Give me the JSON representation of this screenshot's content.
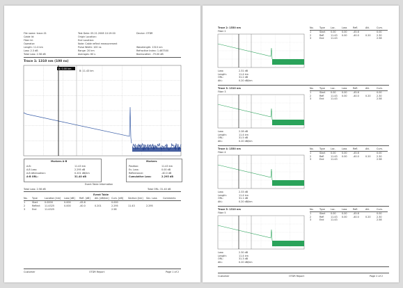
{
  "page1": {
    "header_left": [
      {
        "label": "File name:",
        "value": "trace-01"
      },
      {
        "label": "Cable Id:",
        "value": ""
      },
      {
        "label": "Fiber Id:",
        "value": ""
      },
      {
        "label": "Operator:",
        "value": ""
      },
      {
        "label": "Length:",
        "value": "11.4 km"
      },
      {
        "label": "Loss:",
        "value": "2.3 dB"
      },
      {
        "label": "Total Loss:",
        "value": "2.58 dB"
      }
    ],
    "header_mid": [
      {
        "label": "Test Date:",
        "value": "05.21.2008  10:19:00"
      },
      {
        "label": "Origin Location:",
        "value": ""
      },
      {
        "label": "End Location:",
        "value": ""
      },
      {
        "label": "Note:",
        "value": "Cable reflect measurement"
      },
      {
        "label": "Pulse Width:",
        "value": "100 ns"
      },
      {
        "label": "Range:",
        "value": "20 km"
      },
      {
        "label": "Averages:",
        "value": "60 s"
      }
    ],
    "header_right": [
      {
        "label": "Device:",
        "value": "OTDR"
      },
      {
        "label": "",
        "value": ""
      },
      {
        "label": "",
        "value": ""
      },
      {
        "label": "",
        "value": ""
      },
      {
        "label": "Wavelength:",
        "value": "1310 nm"
      },
      {
        "label": "Refractive Index:",
        "value": "1.467500"
      },
      {
        "label": "Backscatter:",
        "value": "-79.00 dB"
      }
    ],
    "trace_title": "Trace 1: 1310 nm  (100 ns)",
    "cursor_a_label": "A: 0.00 km",
    "cursor_b_label": "B: 11.43 km",
    "results_left_title": "Markers A-B",
    "results_left": [
      {
        "label": "A-B:",
        "value": "11.43 km"
      },
      {
        "label": "A-B Loss:",
        "value": "2.295 dB"
      },
      {
        "label": "A-B Attenuation:",
        "value": "0.201 dB/km"
      },
      {
        "label": "A-B ORL:",
        "value": "31.40 dB"
      }
    ],
    "results_right_title": "Markers",
    "results_right": [
      {
        "label": "Position:",
        "value": "11.43 km"
      },
      {
        "label": "Ev. Loss:",
        "value": "0.00 dB"
      },
      {
        "label": "Reflectance:",
        "value": "-40.0 dB"
      },
      {
        "label": "Cumulative Loss:",
        "value": "2.295 dB"
      }
    ],
    "summary_title": "Event Table Information",
    "summary_left": "Total Loss: 2.58 dB",
    "summary_right": "Total ORL: 31.40 dB",
    "event_table_title": "Event Table",
    "event_columns": [
      "No.",
      "Type",
      "Location [km]",
      "Loss [dB]",
      "Refl. [dB]",
      "Att. [dB/km]",
      "Cum. [dB]",
      "Section [km]",
      "Sec. Loss",
      "Comments"
    ],
    "event_rows": [
      [
        "1",
        "Start",
        "0.0000",
        "0.000",
        "-45.6",
        "",
        "0.000",
        "",
        "",
        ""
      ],
      [
        "2",
        "Reflect",
        "11.4325",
        "0.000",
        "-40.0",
        "0.201",
        "2.295",
        "11.43",
        "2.295",
        ""
      ],
      [
        "3",
        "End",
        "11.4325",
        "",
        "",
        "",
        "2.58",
        "",
        "",
        ""
      ]
    ],
    "footer_left": "Customer",
    "footer_mid": "OTDR Report",
    "footer_right": "Page 1 of 2"
  },
  "page2": {
    "mini_traces": [
      {
        "title": "Trace 2: 1550 nm",
        "subtitle": "Fiber 2",
        "info_rows": [
          [
            "Loss:",
            "2.31 dB"
          ],
          [
            "Length:",
            "11.4 km"
          ],
          [
            "ORL:",
            "31.2 dB"
          ],
          [
            "Att.:",
            "0.20 dB/km"
          ]
        ]
      },
      {
        "title": "Trace 3: 1310 nm",
        "subtitle": "Fiber 3",
        "info_rows": [
          [
            "Loss:",
            "2.28 dB"
          ],
          [
            "Length:",
            "11.4 km"
          ],
          [
            "ORL:",
            "31.5 dB"
          ],
          [
            "Att.:",
            "0.20 dB/km"
          ]
        ]
      },
      {
        "title": "Trace 4: 1550 nm",
        "subtitle": "Fiber 4",
        "info_rows": [
          [
            "Loss:",
            "2.33 dB"
          ],
          [
            "Length:",
            "11.4 km"
          ],
          [
            "ORL:",
            "31.1 dB"
          ],
          [
            "Att.:",
            "0.20 dB/km"
          ]
        ]
      },
      {
        "title": "Trace 5: 1310 nm",
        "subtitle": "Fiber 5",
        "info_rows": [
          [
            "Loss:",
            "2.30 dB"
          ],
          [
            "Length:",
            "11.4 km"
          ],
          [
            "ORL:",
            "31.3 dB"
          ],
          [
            "Att.:",
            "0.20 dB/km"
          ]
        ]
      }
    ],
    "mini_table_columns": [
      "No.",
      "Type",
      "Loc.",
      "Loss",
      "Refl.",
      "Att.",
      "Cum."
    ],
    "mini_table_rows": [
      [
        "1",
        "Start",
        "0.00",
        "0.00",
        "-45.6",
        "",
        "0.00"
      ],
      [
        "2",
        "Refl",
        "11.43",
        "0.00",
        "-40.0",
        "0.20",
        "2.30"
      ],
      [
        "3",
        "End",
        "11.43",
        "",
        "",
        "",
        "2.58"
      ]
    ],
    "footer_left": "Customer",
    "footer_mid": "OTDR Report",
    "footer_right": "Page 2 of 2"
  },
  "colors": {
    "trace_main": "#3b5fa8",
    "noise": "#1a3a8a",
    "trace_green": "#2aa35a",
    "cursor": "#000000"
  }
}
